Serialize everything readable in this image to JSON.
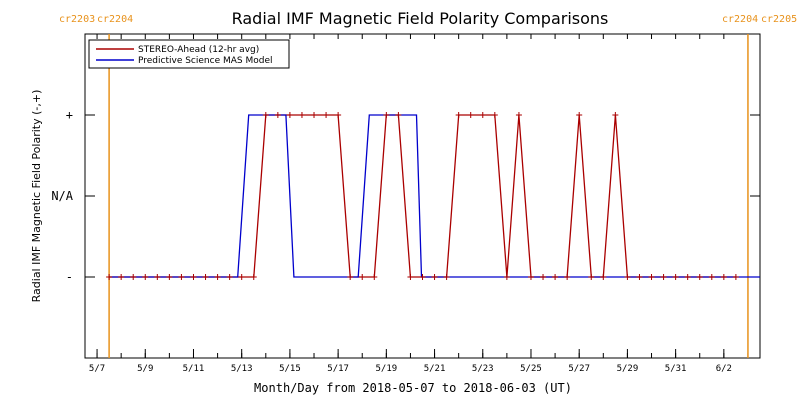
{
  "chart_data": {
    "type": "line",
    "title": "Radial IMF Magnetic Field Polarity Comparisons",
    "xlabel": "Month/Day from 2018-05-07 to 2018-06-03 (UT)",
    "ylabel": "Radial IMF Magnetic Field Polarity (-,+)",
    "xlim": [
      "2018-05-07",
      "2018-06-03"
    ],
    "ylim": [
      -2,
      2
    ],
    "xtick_labels": [
      "5/7",
      "5/9",
      "5/11",
      "5/13",
      "5/15",
      "5/17",
      "5/19",
      "5/21",
      "5/23",
      "5/25",
      "5/27",
      "5/29",
      "5/31",
      "6/2"
    ],
    "ytick_labels": [
      "-",
      "N/A",
      "+"
    ],
    "ytick_values": [
      -1,
      0,
      1
    ],
    "legend": {
      "placement": "top-left"
    },
    "carrington_markers": [
      {
        "date": "2018-05-07T12:00",
        "left_label": "cr2203",
        "right_label": "cr2204"
      },
      {
        "date": "2018-06-03T00:00",
        "left_label": "cr2204",
        "right_label": "cr2205"
      }
    ],
    "series": [
      {
        "name": "STEREO-Ahead (12-hr avg)",
        "color": "#aa0000",
        "marker": "plus",
        "x": [
          "2018-05-07T12:00",
          "2018-05-08T00:00",
          "2018-05-08T12:00",
          "2018-05-09T00:00",
          "2018-05-09T12:00",
          "2018-05-10T00:00",
          "2018-05-10T12:00",
          "2018-05-11T00:00",
          "2018-05-11T12:00",
          "2018-05-12T00:00",
          "2018-05-12T12:00",
          "2018-05-13T00:00",
          "2018-05-13T12:00",
          "2018-05-14T00:00",
          "2018-05-14T12:00",
          "2018-05-15T00:00",
          "2018-05-15T12:00",
          "2018-05-16T00:00",
          "2018-05-16T12:00",
          "2018-05-17T00:00",
          "2018-05-17T12:00",
          "2018-05-18T00:00",
          "2018-05-18T12:00",
          "2018-05-19T00:00",
          "2018-05-19T12:00",
          "2018-05-20T00:00",
          "2018-05-20T12:00",
          "2018-05-21T00:00",
          "2018-05-21T12:00",
          "2018-05-22T00:00",
          "2018-05-22T12:00",
          "2018-05-23T00:00",
          "2018-05-23T12:00",
          "2018-05-24T00:00",
          "2018-05-24T12:00",
          "2018-05-25T00:00",
          "2018-05-25T12:00",
          "2018-05-26T00:00",
          "2018-05-26T12:00",
          "2018-05-27T00:00",
          "2018-05-27T12:00",
          "2018-05-28T00:00",
          "2018-05-28T12:00",
          "2018-05-29T00:00",
          "2018-05-29T12:00",
          "2018-05-30T00:00",
          "2018-05-30T12:00",
          "2018-05-31T00:00",
          "2018-05-31T12:00",
          "2018-06-01T00:00",
          "2018-06-01T12:00",
          "2018-06-02T00:00",
          "2018-06-02T12:00"
        ],
        "y": [
          -1,
          -1,
          -1,
          -1,
          -1,
          -1,
          -1,
          -1,
          -1,
          -1,
          -1,
          -1,
          -1,
          1,
          1,
          1,
          1,
          1,
          1,
          1,
          -1,
          -1,
          -1,
          1,
          1,
          -1,
          -1,
          -1,
          -1,
          1,
          1,
          1,
          1,
          -1,
          1,
          -1,
          -1,
          -1,
          -1,
          1,
          -1,
          -1,
          1,
          -1,
          -1,
          -1,
          -1,
          -1,
          -1,
          -1,
          -1,
          -1,
          -1
        ]
      },
      {
        "name": "Predictive Science MAS Model",
        "color": "#0000cc",
        "marker": "none",
        "x": [
          "2018-05-07T12:00",
          "2018-05-12T20:00",
          "2018-05-13T07:00",
          "2018-05-14T20:00",
          "2018-05-15T04:00",
          "2018-05-17T20:00",
          "2018-05-18T07:00",
          "2018-05-20T06:00",
          "2018-05-20T11:00",
          "2018-06-03T00:00"
        ],
        "y": [
          -1,
          -1,
          1,
          1,
          -1,
          -1,
          1,
          1,
          -1,
          -1
        ]
      }
    ]
  }
}
